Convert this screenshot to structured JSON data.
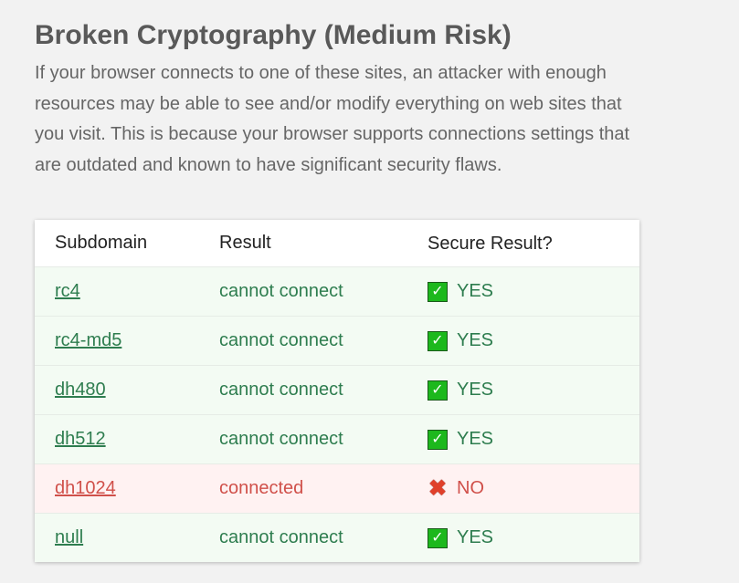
{
  "section": {
    "title": "Broken Cryptography (Medium Risk)",
    "description": "If your browser connects to one of these sites, an attacker with enough resources may be able to see and/or modify everything on web sites that you visit. This is because your browser supports connections settings that are outdated and known to have significant security flaws."
  },
  "table": {
    "headers": [
      "Subdomain",
      "Result",
      "Secure Result?"
    ],
    "rows": [
      {
        "subdomain": "rc4",
        "result": "cannot connect",
        "secure": "YES",
        "status": "ok",
        "icon": "check-icon"
      },
      {
        "subdomain": "rc4-md5",
        "result": "cannot connect",
        "secure": "YES",
        "status": "ok",
        "icon": "check-icon"
      },
      {
        "subdomain": "dh480",
        "result": "cannot connect",
        "secure": "YES",
        "status": "ok",
        "icon": "check-icon"
      },
      {
        "subdomain": "dh512",
        "result": "cannot connect",
        "secure": "YES",
        "status": "ok",
        "icon": "check-icon"
      },
      {
        "subdomain": "dh1024",
        "result": "connected",
        "secure": "NO",
        "status": "bad",
        "icon": "cross-icon"
      },
      {
        "subdomain": "null",
        "result": "cannot connect",
        "secure": "YES",
        "status": "ok",
        "icon": "check-icon"
      }
    ]
  },
  "colors": {
    "ok": "#2e7d4f",
    "bad": "#d0504a",
    "ok_bg": "#f3fbf3",
    "bad_bg": "#fff2f2"
  }
}
